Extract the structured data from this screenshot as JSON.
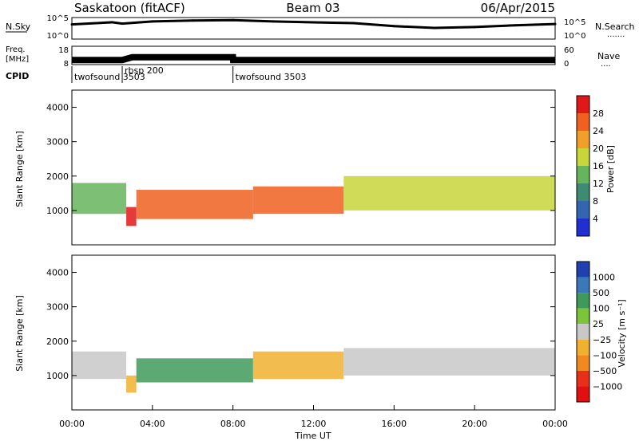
{
  "header": {
    "site": "Saskatoon (fitACF)",
    "beam": "Beam 03",
    "date": "06/Apr/2015"
  },
  "noise_panel": {
    "left_label": "N.Sky",
    "right_label": "N.Search",
    "left_ticks": [
      "10^5",
      "10^0"
    ],
    "right_ticks": [
      "10^5",
      "10^0"
    ]
  },
  "freq_panel": {
    "left_label_line1": "Freq.",
    "left_label_line2": "[MHz]",
    "right_label": "Nave",
    "left_ticks": [
      "18",
      "8"
    ],
    "right_ticks": [
      "60",
      "0"
    ]
  },
  "cpid": {
    "label": "CPID",
    "entries": [
      {
        "name": "twofsound 3503",
        "start_hour": 0
      },
      {
        "name": "rbsp 200",
        "start_hour": 2.5
      },
      {
        "name": "twofsound 3503",
        "start_hour": 8
      }
    ]
  },
  "power_panel": {
    "ylabel": "Slant Range [km]",
    "yticks": [
      "1000",
      "2000",
      "3000",
      "4000"
    ],
    "cbar_label": "Power [dB]",
    "cbar_ticks": [
      "4",
      "8",
      "12",
      "16",
      "20",
      "24",
      "28"
    ],
    "cbar_colors": [
      "#1f2fd0",
      "#3465b0",
      "#3f8a72",
      "#66b45c",
      "#c8d63a",
      "#f0a02a",
      "#f06020",
      "#e01818"
    ]
  },
  "velocity_panel": {
    "ylabel": "Slant Range [km]",
    "yticks": [
      "1000",
      "2000",
      "3000",
      "4000"
    ],
    "cbar_label": "Velocity [m s⁻¹]",
    "cbar_ticks": [
      "1000",
      "500",
      "100",
      "25",
      "−25",
      "−100",
      "−500",
      "−1000"
    ],
    "cbar_colors": [
      "#2040b0",
      "#3a78b8",
      "#3f9a5a",
      "#7cc43c",
      "#c8c8c8",
      "#f0b030",
      "#f08a20",
      "#e83018",
      "#e01010"
    ]
  },
  "x_axis": {
    "label": "Time UT",
    "ticks": [
      "00:00",
      "04:00",
      "08:00",
      "12:00",
      "16:00",
      "20:00",
      "00:00"
    ]
  },
  "chart_data": [
    {
      "type": "line",
      "title": "Saskatoon (fitACF)",
      "xlabel": "Time UT",
      "ylabel": "N.Sky",
      "xlim": [
        0,
        24
      ],
      "ylim_log10": [
        0,
        5
      ],
      "x": [
        0,
        2,
        2.5,
        4,
        6,
        8,
        10,
        12,
        14,
        16,
        18,
        20,
        22,
        24
      ],
      "values_log10": [
        3.4,
        3.9,
        3.6,
        4.1,
        4.3,
        4.4,
        4.1,
        3.9,
        3.7,
        3.0,
        2.6,
        2.8,
        3.2,
        3.5
      ]
    },
    {
      "type": "line",
      "ylabel": "Freq. [MHz]",
      "xlim": [
        0,
        24
      ],
      "ylim": [
        8,
        18
      ],
      "x": [
        0,
        2.5,
        3.0,
        8,
        8.01,
        24
      ],
      "values": [
        10.5,
        10.5,
        12.0,
        12.0,
        10.5,
        10.5
      ]
    },
    {
      "type": "heatmap",
      "title": "Beam 03",
      "ylabel": "Slant Range [km]",
      "colorbar_label": "Power [dB]",
      "xlim": [
        0,
        24
      ],
      "ylim": [
        0,
        4500
      ],
      "clim": [
        0,
        30
      ],
      "bands": [
        {
          "t_start": 0,
          "t_end": 2.7,
          "range_low": 900,
          "range_high": 1800,
          "power": 14
        },
        {
          "t_start": 2.7,
          "t_end": 3.2,
          "range_low": 550,
          "range_high": 1100,
          "power": 28
        },
        {
          "t_start": 3.2,
          "t_end": 9,
          "range_low": 750,
          "range_high": 1600,
          "power": 26
        },
        {
          "t_start": 9,
          "t_end": 13.5,
          "range_low": 900,
          "range_high": 1700,
          "power": 24
        },
        {
          "t_start": 13.5,
          "t_end": 24,
          "range_low": 1000,
          "range_high": 2000,
          "power": 18
        }
      ]
    },
    {
      "type": "heatmap",
      "ylabel": "Slant Range [km]",
      "xlabel": "Time UT",
      "colorbar_label": "Velocity [m s⁻¹]",
      "xlim": [
        0,
        24
      ],
      "ylim": [
        0,
        4500
      ],
      "clim": [
        -1000,
        1000
      ],
      "bands": [
        {
          "t_start": 0,
          "t_end": 2.7,
          "range_low": 900,
          "range_high": 1700,
          "velocity": 0
        },
        {
          "t_start": 2.7,
          "t_end": 3.2,
          "range_low": 500,
          "range_high": 1000,
          "velocity": -300
        },
        {
          "t_start": 3.2,
          "t_end": 9,
          "range_low": 800,
          "range_high": 1500,
          "velocity": 400
        },
        {
          "t_start": 9,
          "t_end": 13.5,
          "range_low": 900,
          "range_high": 1700,
          "velocity": -200
        },
        {
          "t_start": 13.5,
          "t_end": 24,
          "range_low": 1000,
          "range_high": 1800,
          "velocity": 0
        }
      ]
    }
  ]
}
